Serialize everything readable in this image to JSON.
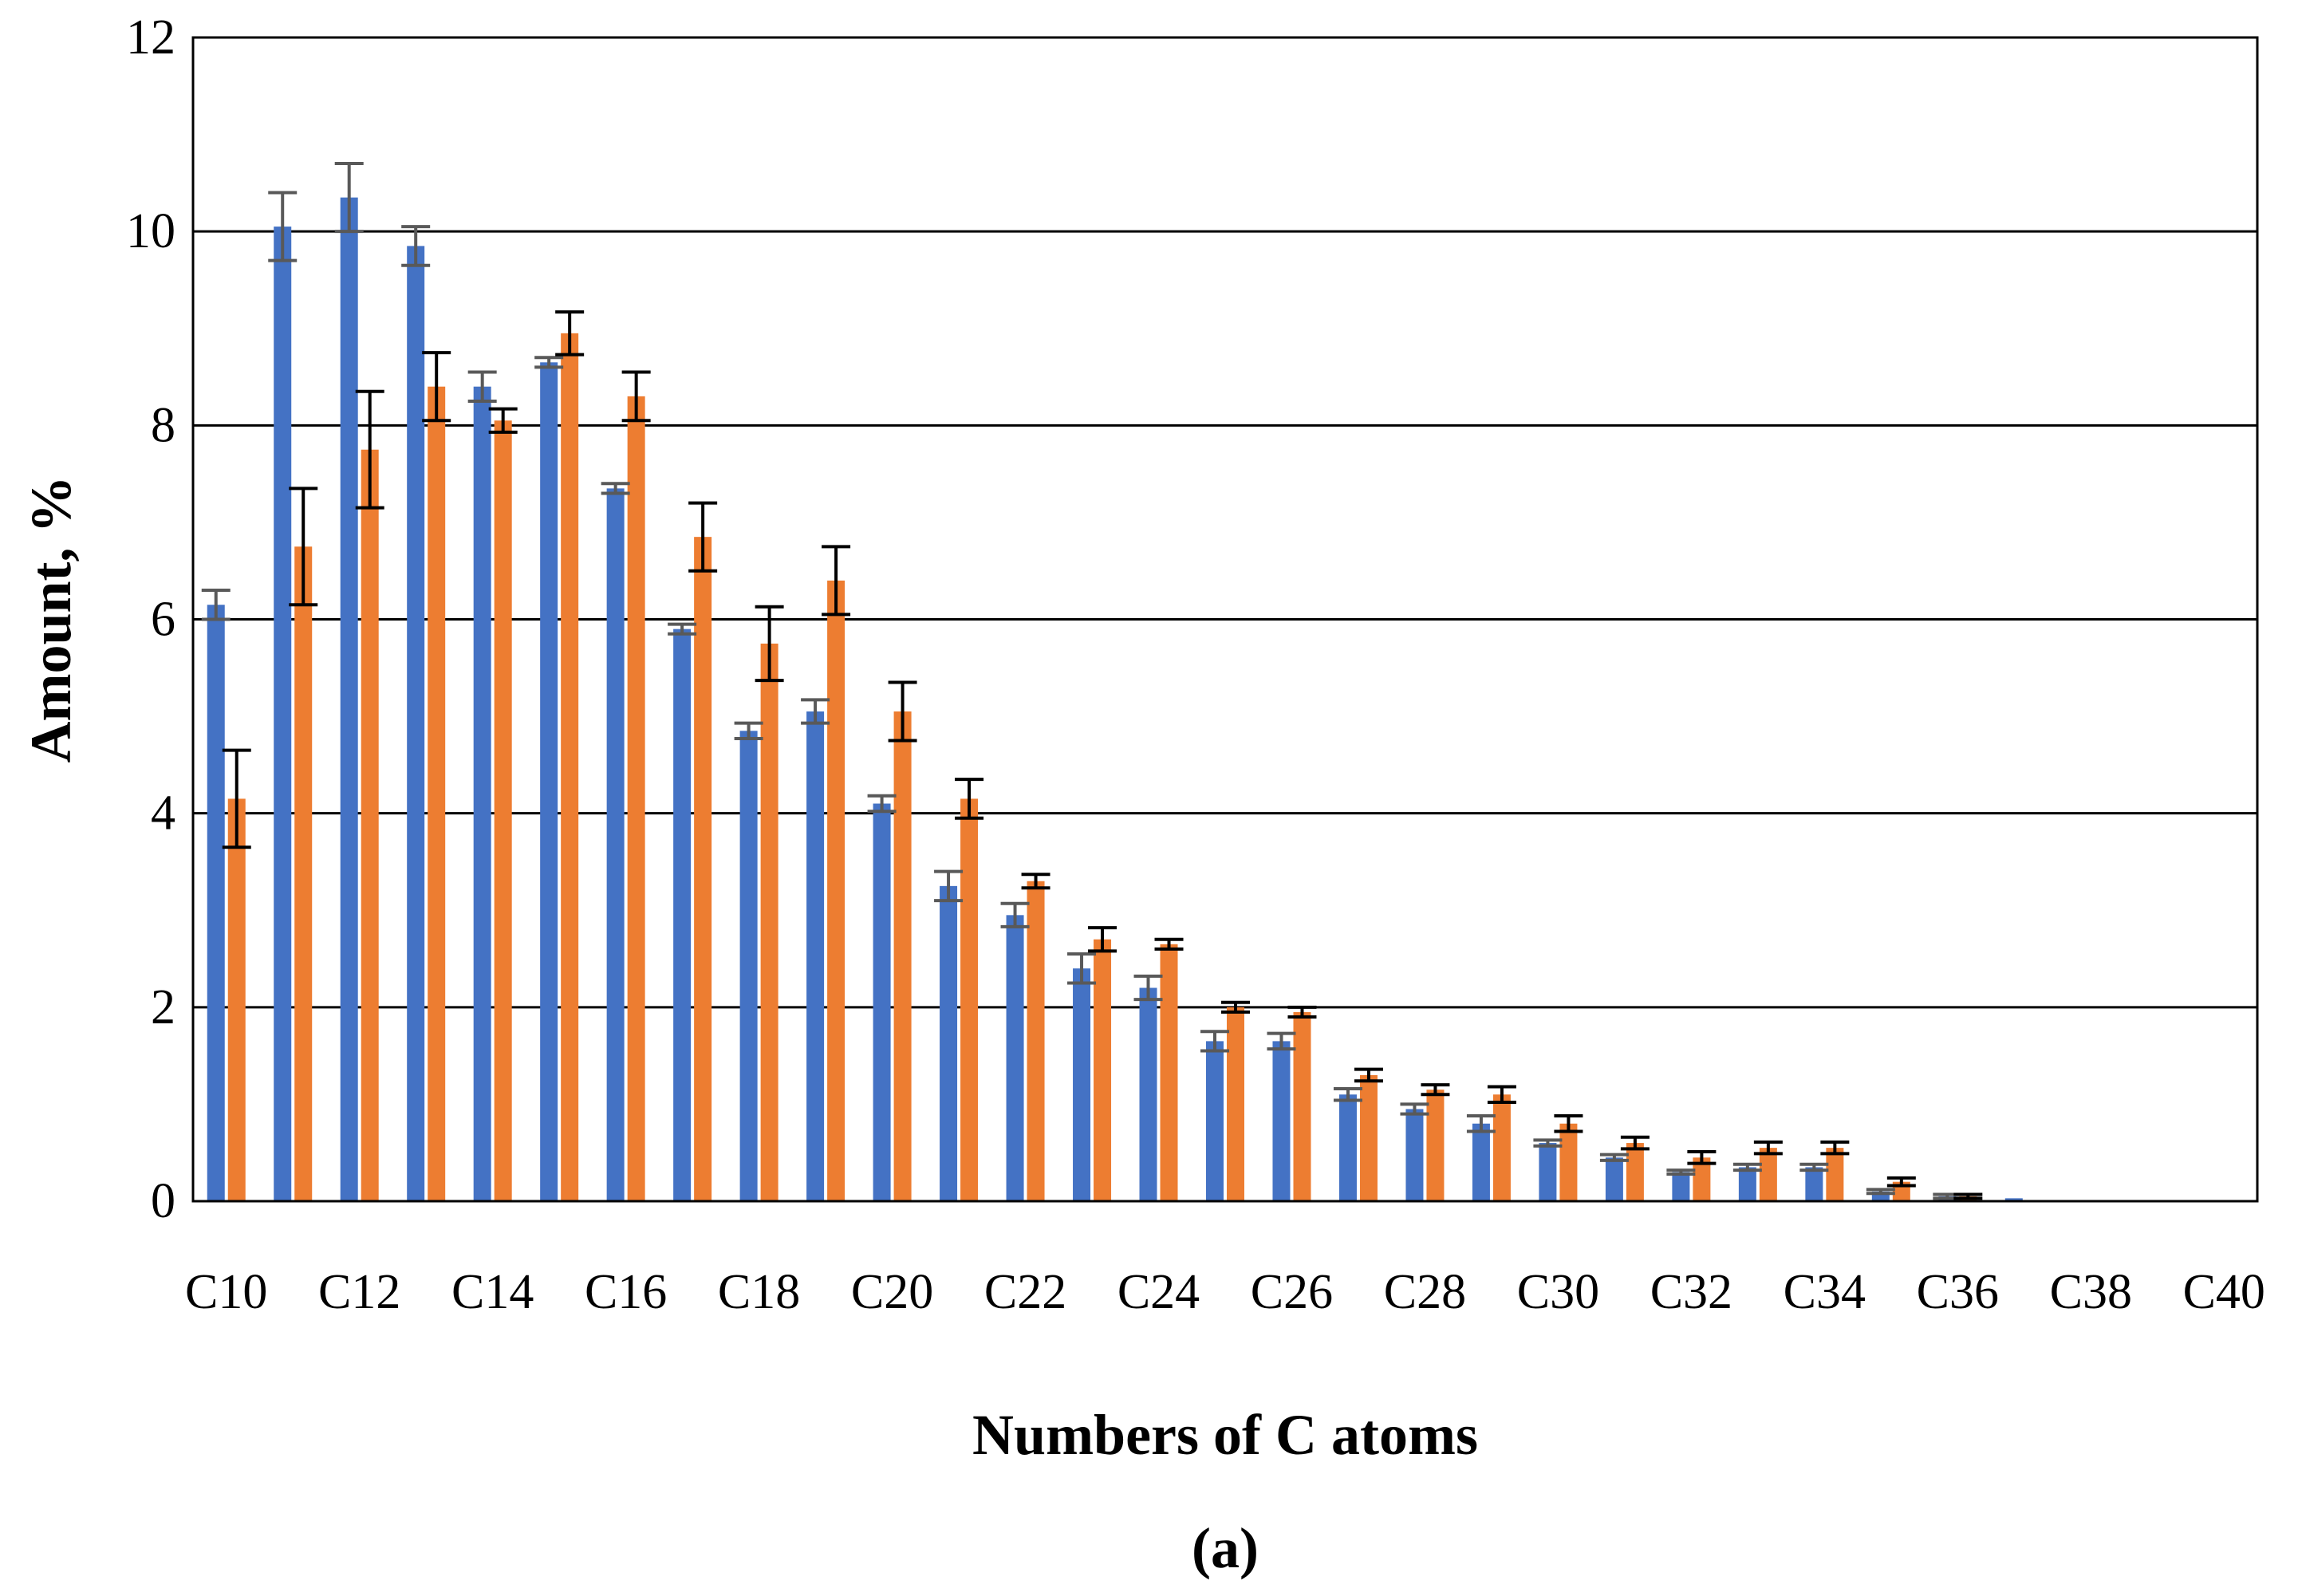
{
  "chart_data": {
    "type": "bar",
    "title": "",
    "caption": "(a)",
    "xlabel": "Numbers of C atoms",
    "ylabel": "Amount, %",
    "ylim": [
      0,
      12
    ],
    "yticks": [
      0,
      2,
      4,
      6,
      8,
      10,
      12
    ],
    "grid": true,
    "legend": "none",
    "categories": [
      "C10",
      "C11",
      "C12",
      "C13",
      "C14",
      "C15",
      "C16",
      "C17",
      "C18",
      "C19",
      "C20",
      "C21",
      "C22",
      "C23",
      "C24",
      "C25",
      "C26",
      "C27",
      "C28",
      "C29",
      "C30",
      "C31",
      "C32",
      "C33",
      "C34",
      "C35",
      "C36",
      "C37",
      "C38",
      "C39",
      "C40"
    ],
    "tick_labels": [
      "C10",
      "C12",
      "C14",
      "C16",
      "C18",
      "C20",
      "C22",
      "C24",
      "C26",
      "C28",
      "C30",
      "C32",
      "C34",
      "C36",
      "C38",
      "C40"
    ],
    "colors": {
      "series1": "#4472C4",
      "series2": "#ED7D31",
      "error1": "#595959",
      "error2": "#000000",
      "grid": "#000000"
    },
    "series": [
      {
        "values": [
          6.15,
          10.05,
          10.35,
          9.85,
          8.4,
          8.65,
          7.35,
          5.9,
          4.85,
          5.05,
          4.1,
          3.25,
          2.95,
          2.4,
          2.2,
          1.65,
          1.65,
          1.1,
          0.95,
          0.8,
          0.6,
          0.45,
          0.3,
          0.35,
          0.35,
          0.1,
          0.05,
          0.03,
          0.01,
          0.01,
          0.01
        ],
        "errors": [
          0.15,
          0.35,
          0.35,
          0.2,
          0.15,
          0.05,
          0.05,
          0.05,
          0.08,
          0.12,
          0.08,
          0.15,
          0.12,
          0.15,
          0.12,
          0.1,
          0.08,
          0.06,
          0.05,
          0.08,
          0.03,
          0.03,
          0.02,
          0.03,
          0.03,
          0.02,
          0.02,
          0.0,
          0.0,
          0.0,
          0.0
        ]
      },
      {
        "values": [
          4.15,
          6.75,
          7.75,
          8.4,
          8.05,
          8.95,
          8.3,
          6.85,
          5.75,
          6.4,
          5.05,
          4.15,
          3.3,
          2.7,
          2.65,
          2.0,
          1.95,
          1.3,
          1.15,
          1.1,
          0.8,
          0.6,
          0.45,
          0.55,
          0.55,
          0.2,
          0.05,
          0.01,
          0.01,
          0.01,
          0.01
        ],
        "errors": [
          0.5,
          0.6,
          0.6,
          0.35,
          0.12,
          0.22,
          0.25,
          0.35,
          0.38,
          0.35,
          0.3,
          0.2,
          0.07,
          0.12,
          0.05,
          0.05,
          0.05,
          0.06,
          0.05,
          0.08,
          0.08,
          0.06,
          0.06,
          0.06,
          0.06,
          0.04,
          0.02,
          0.0,
          0.0,
          0.0,
          0.0
        ]
      }
    ]
  }
}
